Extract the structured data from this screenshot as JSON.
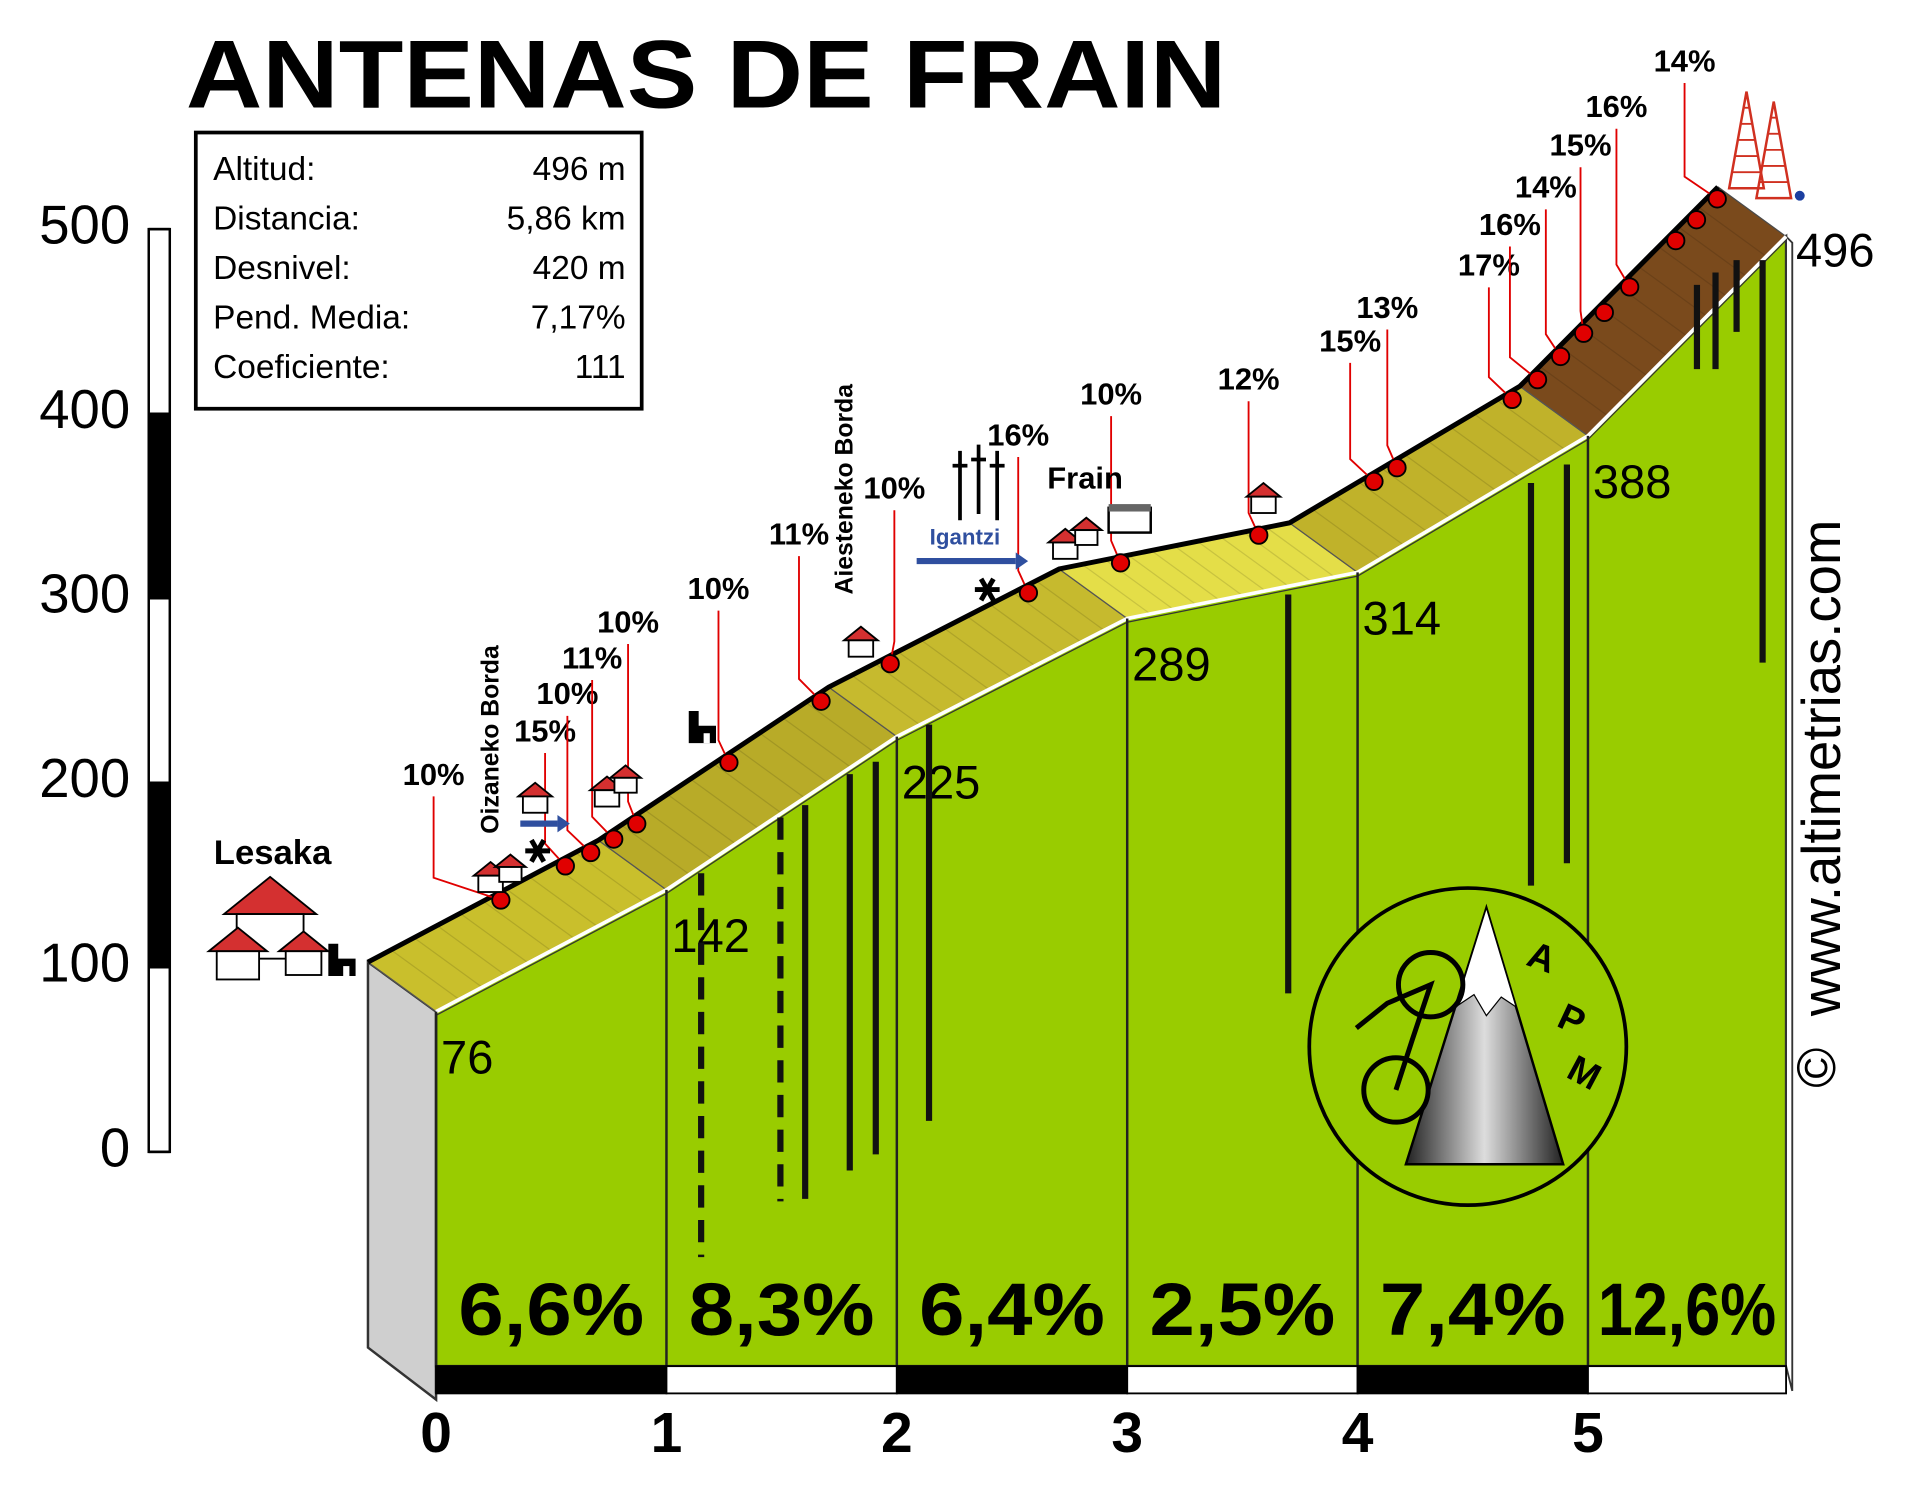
{
  "chart_data": {
    "type": "profile",
    "title": "ANTENAS DE FRAIN",
    "info": [
      {
        "label": "Altitud:",
        "value": "496 m"
      },
      {
        "label": "Distancia:",
        "value": "5,86 km"
      },
      {
        "label": "Desnivel:",
        "value": "420 m"
      },
      {
        "label": "Pend. Media:",
        "value": "7,17%"
      },
      {
        "label": "Coeficiente:",
        "value": "111"
      }
    ],
    "x": [
      0,
      1,
      2,
      3,
      4,
      5,
      5.86
    ],
    "values": [
      76,
      142,
      225,
      289,
      314,
      388,
      496
    ],
    "xlim": [
      0,
      5.86
    ],
    "xticks": [
      0,
      1,
      2,
      3,
      4,
      5
    ],
    "ylim": [
      0,
      500
    ],
    "yticks": [
      0,
      100,
      200,
      300,
      400,
      500
    ],
    "segments": {
      "values": [
        6.6,
        8.3,
        6.4,
        2.5,
        7.4,
        12.6
      ],
      "value_labels": [
        "6,6%",
        "8,3%",
        "6,4%",
        "2,5%",
        "7,4%",
        "12,6%"
      ],
      "colors": [
        "#c9bf2c",
        "#b8ab28",
        "#c6ba2e",
        "#e4de48",
        "#c0b22a",
        "#7a4a1c"
      ]
    },
    "markers": [
      {
        "x": 0.55,
        "label": "10%"
      },
      {
        "x": 0.83,
        "label": "15%"
      },
      {
        "x": 0.94,
        "label": "10%"
      },
      {
        "x": 1.04,
        "label": "11%"
      },
      {
        "x": 1.14,
        "label": "10%"
      },
      {
        "x": 1.54,
        "label": "10%"
      },
      {
        "x": 1.94,
        "label": "11%"
      },
      {
        "x": 2.24,
        "label": "10%"
      },
      {
        "x": 2.84,
        "label": "16%"
      },
      {
        "x": 3.24,
        "label": "10%"
      },
      {
        "x": 3.84,
        "label": "12%"
      },
      {
        "x": 4.34,
        "label": "15%"
      },
      {
        "x": 4.44,
        "label": "13%"
      },
      {
        "x": 4.94,
        "label": "17%"
      },
      {
        "x": 5.05,
        "label": "16%"
      },
      {
        "x": 5.15,
        "label": "14%"
      },
      {
        "x": 5.25,
        "label": "15%"
      },
      {
        "x": 5.34
      },
      {
        "x": 5.45,
        "label": "16%"
      },
      {
        "x": 5.65
      },
      {
        "x": 5.74
      },
      {
        "x": 5.83,
        "label": "14%"
      }
    ],
    "places": [
      "Lesaka",
      "Oizaneko Borda",
      "Aiesteneko Borda",
      "Frain",
      "Igantzi"
    ],
    "watermark": "www.altimetrias.com",
    "copyright": "©",
    "logo": [
      "A",
      "P",
      "M"
    ]
  }
}
